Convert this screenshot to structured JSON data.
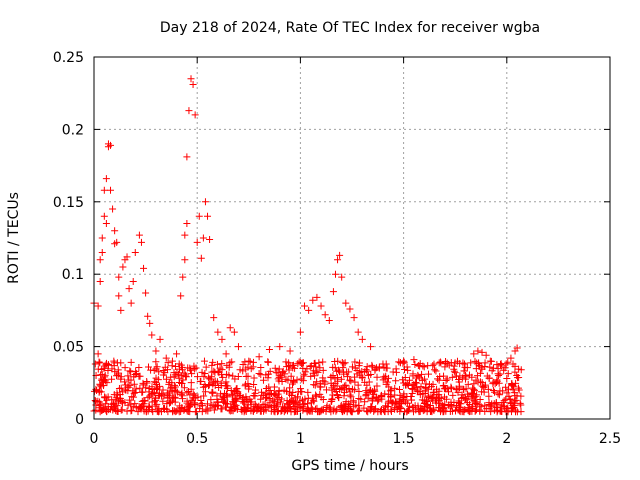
{
  "chart_data": {
    "type": "scatter",
    "title": "Day 218 of 2024, Rate Of TEC Index for receiver wgba",
    "xlabel": "GPS time / hours",
    "ylabel": "ROTI / TECUs",
    "xlim": [
      0,
      2.5
    ],
    "ylim": [
      0,
      0.25
    ],
    "x_ticks": [
      "0",
      "0.5",
      "1",
      "1.5",
      "2",
      "2.5"
    ],
    "y_ticks": [
      "0",
      "0.05",
      "0.1",
      "0.15",
      "0.2",
      "0.25"
    ],
    "grid": true,
    "marker": "+",
    "color": "#ff0000",
    "series": [
      {
        "name": "ROTI",
        "points": [
          [
            0.0,
            0.08
          ],
          [
            0.01,
            0.012
          ],
          [
            0.01,
            0.03
          ],
          [
            0.02,
            0.045
          ],
          [
            0.02,
            0.078
          ],
          [
            0.03,
            0.095
          ],
          [
            0.03,
            0.11
          ],
          [
            0.04,
            0.115
          ],
          [
            0.04,
            0.125
          ],
          [
            0.05,
            0.14
          ],
          [
            0.05,
            0.158
          ],
          [
            0.06,
            0.166
          ],
          [
            0.06,
            0.135
          ],
          [
            0.07,
            0.188
          ],
          [
            0.07,
            0.19
          ],
          [
            0.08,
            0.189
          ],
          [
            0.08,
            0.158
          ],
          [
            0.09,
            0.145
          ],
          [
            0.1,
            0.121
          ],
          [
            0.1,
            0.13
          ],
          [
            0.11,
            0.122
          ],
          [
            0.12,
            0.098
          ],
          [
            0.12,
            0.085
          ],
          [
            0.13,
            0.075
          ],
          [
            0.14,
            0.105
          ],
          [
            0.15,
            0.11
          ],
          [
            0.16,
            0.112
          ],
          [
            0.17,
            0.09
          ],
          [
            0.18,
            0.08
          ],
          [
            0.19,
            0.095
          ],
          [
            0.2,
            0.115
          ],
          [
            0.22,
            0.127
          ],
          [
            0.23,
            0.122
          ],
          [
            0.24,
            0.104
          ],
          [
            0.25,
            0.087
          ],
          [
            0.26,
            0.071
          ],
          [
            0.27,
            0.066
          ],
          [
            0.28,
            0.058
          ],
          [
            0.3,
            0.047
          ],
          [
            0.32,
            0.055
          ],
          [
            0.35,
            0.042
          ],
          [
            0.38,
            0.04
          ],
          [
            0.4,
            0.045
          ],
          [
            0.42,
            0.085
          ],
          [
            0.43,
            0.098
          ],
          [
            0.44,
            0.127
          ],
          [
            0.44,
            0.11
          ],
          [
            0.45,
            0.135
          ],
          [
            0.45,
            0.181
          ],
          [
            0.46,
            0.213
          ],
          [
            0.47,
            0.235
          ],
          [
            0.48,
            0.231
          ],
          [
            0.49,
            0.21
          ],
          [
            0.5,
            0.122
          ],
          [
            0.51,
            0.14
          ],
          [
            0.52,
            0.111
          ],
          [
            0.53,
            0.125
          ],
          [
            0.54,
            0.15
          ],
          [
            0.55,
            0.14
          ],
          [
            0.56,
            0.124
          ],
          [
            0.58,
            0.07
          ],
          [
            0.6,
            0.06
          ],
          [
            0.62,
            0.055
          ],
          [
            0.64,
            0.045
          ],
          [
            0.66,
            0.063
          ],
          [
            0.68,
            0.06
          ],
          [
            0.7,
            0.05
          ],
          [
            0.75,
            0.04
          ],
          [
            0.8,
            0.043
          ],
          [
            0.85,
            0.048
          ],
          [
            0.9,
            0.05
          ],
          [
            0.95,
            0.047
          ],
          [
            1.0,
            0.06
          ],
          [
            1.02,
            0.078
          ],
          [
            1.04,
            0.075
          ],
          [
            1.06,
            0.082
          ],
          [
            1.08,
            0.084
          ],
          [
            1.1,
            0.078
          ],
          [
            1.12,
            0.072
          ],
          [
            1.14,
            0.068
          ],
          [
            1.16,
            0.088
          ],
          [
            1.17,
            0.1
          ],
          [
            1.18,
            0.11
          ],
          [
            1.19,
            0.113
          ],
          [
            1.2,
            0.098
          ],
          [
            1.22,
            0.08
          ],
          [
            1.24,
            0.076
          ],
          [
            1.26,
            0.07
          ],
          [
            1.28,
            0.06
          ],
          [
            1.3,
            0.055
          ],
          [
            1.34,
            0.05
          ],
          [
            1.4,
            0.038
          ],
          [
            1.5,
            0.04
          ],
          [
            1.55,
            0.041
          ],
          [
            1.6,
            0.036
          ],
          [
            1.65,
            0.034
          ],
          [
            1.7,
            0.036
          ],
          [
            1.75,
            0.032
          ],
          [
            1.8,
            0.03
          ],
          [
            1.84,
            0.045
          ],
          [
            1.86,
            0.047
          ],
          [
            1.88,
            0.046
          ],
          [
            1.9,
            0.044
          ],
          [
            1.92,
            0.04
          ],
          [
            1.96,
            0.03
          ],
          [
            2.0,
            0.028
          ],
          [
            2.02,
            0.042
          ],
          [
            2.03,
            0.038
          ],
          [
            2.04,
            0.047
          ],
          [
            2.05,
            0.049
          ],
          [
            2.06,
            0.02
          ]
        ],
        "dense_band": {
          "x_range": [
            0.0,
            2.07
          ],
          "y_range": [
            0.005,
            0.04
          ],
          "count": 1400,
          "description": "dense cluster of low ROTI values"
        }
      }
    ]
  }
}
